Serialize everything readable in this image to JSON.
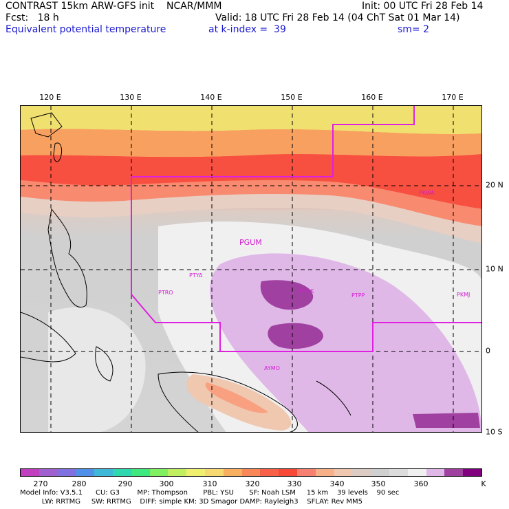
{
  "header": {
    "model_line": "CONTRAST 15km ARW-GFS init    NCAR/MMM",
    "init": "Init: 00 UTC Fri 28 Feb 14",
    "fcst": "Fcst:   18 h",
    "valid": "Valid: 18 UTC Fri 28 Feb 14 (04 ChT Sat 01 Mar 14)",
    "field": "Equivalent potential temperature",
    "level": "at k-index =  39",
    "smooth": "sm= 2"
  },
  "map": {
    "lon_labels": [
      "120 E",
      "130 E",
      "140 E",
      "150 E",
      "160 E",
      "170 E"
    ],
    "lat_labels": [
      "20 N",
      "10 N",
      "0",
      "10 S"
    ],
    "stations": [
      "PGUM",
      "PTYA",
      "PTRO",
      "PTKK",
      "PTPP",
      "PKMJ",
      "PKWA",
      "AYMO"
    ],
    "boundary_color": "#e020e0"
  },
  "colorbar": {
    "colors": [
      "#c040c0",
      "#a060d0",
      "#8070e0",
      "#5090e8",
      "#40b8d8",
      "#30d8b0",
      "#40e880",
      "#80f060",
      "#c0f060",
      "#f0f070",
      "#f8d870",
      "#f8b060",
      "#f88858",
      "#f86048",
      "#f84838",
      "#f88070",
      "#f8b088",
      "#f0c8b0",
      "#dcccc4",
      "#d0d0d0",
      "#dddddd",
      "#f0f0f0",
      "#e0b8e8",
      "#a040a0",
      "#800080"
    ],
    "labels": [
      "270",
      "280",
      "290",
      "300",
      "310",
      "320",
      "330",
      "340",
      "350",
      "360",
      "K"
    ],
    "unit": "K"
  },
  "footer": {
    "line1": "Model Info: V3.5.1      CU: G3        MP: Thompson       PBL: YSU       SF: Noah LSM     15 km    39 levels    90 sec",
    "line2": "          LW: RRTMG     SW: RRTMG    DIFF: simple KM: 3D Smagor DAMP: Rayleigh3    SFLAY: Rev MM5"
  }
}
